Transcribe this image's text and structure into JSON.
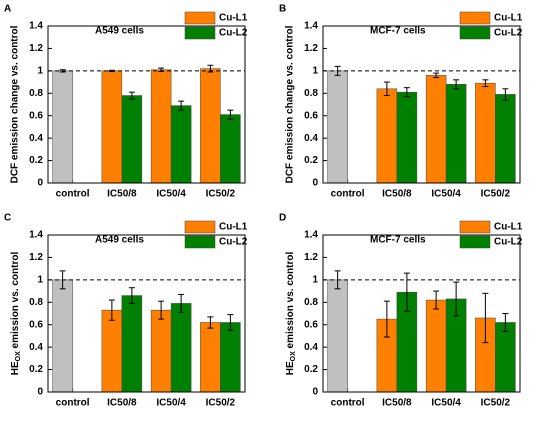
{
  "chart_data": [
    {
      "type": "bar",
      "panel": "A",
      "annotation": "A549 cells",
      "ylabel": "DCF emission change vs. control",
      "categories": [
        "control",
        "IC50/8",
        "IC50/4",
        "IC50/2"
      ],
      "control": {
        "value": 1.0,
        "error": 0.01,
        "color": "#c0c0c0"
      },
      "series": [
        {
          "name": "Cu-L1",
          "color": "#ff8000",
          "values": [
            null,
            1.0,
            1.01,
            1.02
          ],
          "errors": [
            null,
            0.005,
            0.015,
            0.03
          ]
        },
        {
          "name": "Cu-L2",
          "color": "#008000",
          "values": [
            null,
            0.78,
            0.69,
            0.61
          ],
          "errors": [
            null,
            0.03,
            0.04,
            0.04
          ]
        }
      ],
      "ylim": [
        0,
        1.4
      ],
      "yticks": [
        0,
        0.2,
        0.4,
        0.6,
        0.8,
        1,
        1.2,
        1.4
      ],
      "refline": 1
    },
    {
      "type": "bar",
      "panel": "B",
      "annotation": "MCF-7 cells",
      "ylabel": "DCF emission change vs. control",
      "categories": [
        "control",
        "IC50/8",
        "IC50/4",
        "IC50/2"
      ],
      "control": {
        "value": 1.0,
        "error": 0.04,
        "color": "#c0c0c0"
      },
      "series": [
        {
          "name": "Cu-L1",
          "color": "#ff8000",
          "values": [
            null,
            0.84,
            0.96,
            0.89
          ],
          "errors": [
            null,
            0.06,
            0.02,
            0.03
          ]
        },
        {
          "name": "Cu-L2",
          "color": "#008000",
          "values": [
            null,
            0.81,
            0.88,
            0.79
          ],
          "errors": [
            null,
            0.04,
            0.04,
            0.05
          ]
        }
      ],
      "ylim": [
        0,
        1.4
      ],
      "yticks": [
        0,
        0.2,
        0.4,
        0.6,
        0.8,
        1,
        1.2,
        1.4
      ],
      "refline": 1
    },
    {
      "type": "bar",
      "panel": "C",
      "annotation": "A549 cells",
      "ylabel": [
        "HE",
        "OX",
        " emission vs. control"
      ],
      "categories": [
        "control",
        "IC50/8",
        "IC50/4",
        "IC50/2"
      ],
      "control": {
        "value": 1.0,
        "error": 0.08,
        "color": "#c0c0c0"
      },
      "series": [
        {
          "name": "Cu-L1",
          "color": "#ff8000",
          "values": [
            null,
            0.73,
            0.73,
            0.62
          ],
          "errors": [
            null,
            0.09,
            0.08,
            0.05
          ]
        },
        {
          "name": "Cu-L2",
          "color": "#008000",
          "values": [
            null,
            0.86,
            0.79,
            0.62
          ],
          "errors": [
            null,
            0.07,
            0.08,
            0.07
          ]
        }
      ],
      "ylim": [
        0,
        1.4
      ],
      "yticks": [
        0,
        0.2,
        0.4,
        0.6,
        0.8,
        1,
        1.2,
        1.4
      ],
      "refline": 1
    },
    {
      "type": "bar",
      "panel": "D",
      "annotation": "MCF-7 cells",
      "ylabel": [
        "HE",
        "OX",
        " emission vs. control"
      ],
      "categories": [
        "control",
        "IC50/8",
        "IC50/4",
        "IC50/2"
      ],
      "control": {
        "value": 1.0,
        "error": 0.08,
        "color": "#c0c0c0"
      },
      "series": [
        {
          "name": "Cu-L1",
          "color": "#ff8000",
          "values": [
            null,
            0.65,
            0.82,
            0.66
          ],
          "errors": [
            null,
            0.16,
            0.08,
            0.22
          ]
        },
        {
          "name": "Cu-L2",
          "color": "#008000",
          "values": [
            null,
            0.89,
            0.83,
            0.62
          ],
          "errors": [
            null,
            0.17,
            0.15,
            0.08
          ]
        }
      ],
      "ylim": [
        0,
        1.4
      ],
      "yticks": [
        0,
        0.2,
        0.4,
        0.6,
        0.8,
        1,
        1.2,
        1.4
      ],
      "refline": 1
    }
  ]
}
